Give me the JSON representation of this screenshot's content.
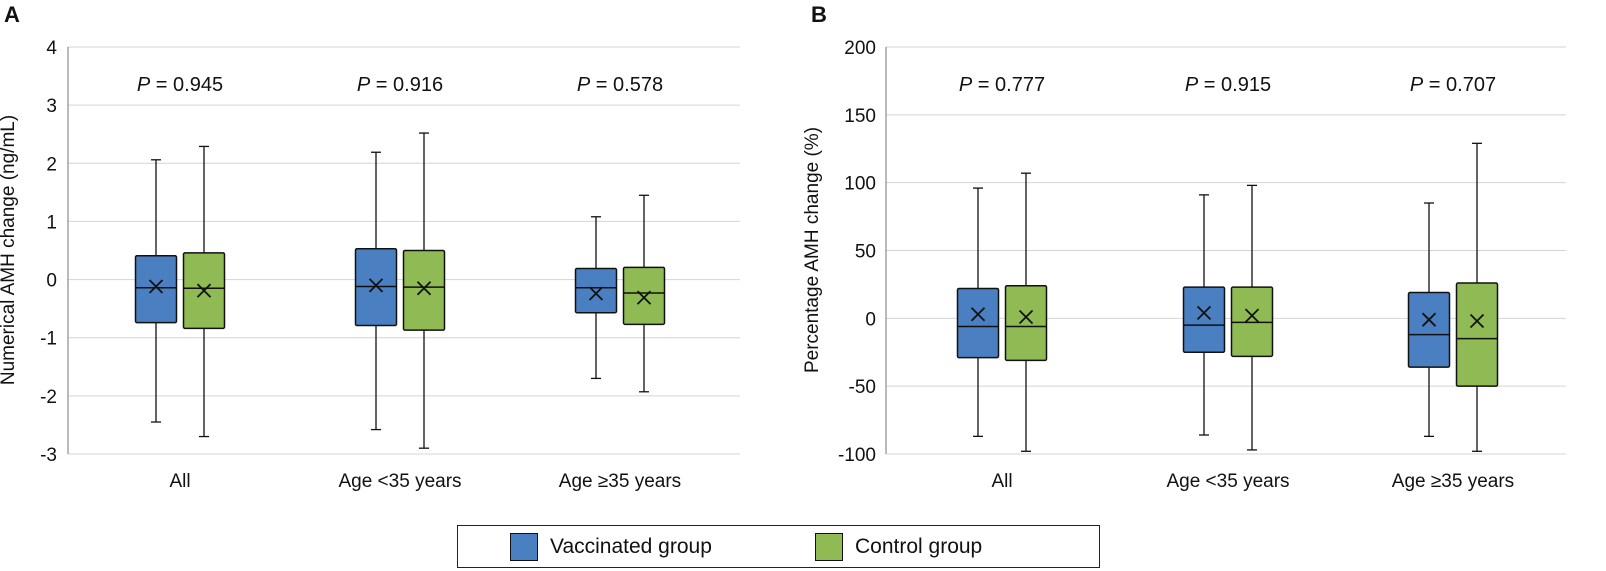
{
  "colors": {
    "vaccinated": "#4a7fc1",
    "control": "#8fba54",
    "grid": "#d4d4d4",
    "axis": "#8c8c8c",
    "ink": "#111111"
  },
  "legend": [
    {
      "label": "Vaccinated group",
      "color": "#4a7fc1"
    },
    {
      "label": "Control group",
      "color": "#8fba54"
    }
  ],
  "chart_data": [
    {
      "panel": "A",
      "type": "boxplot",
      "ylabel": "Numerical AMH change (ng/mL)",
      "ylim": [
        -3,
        4
      ],
      "yticks": [
        -3,
        -2,
        -1,
        0,
        1,
        2,
        3,
        4
      ],
      "grid": true,
      "categories": [
        "All",
        "Age <35 years",
        "Age ≥35 years"
      ],
      "p_values": [
        "0.945",
        "0.916",
        "0.578"
      ],
      "series": [
        {
          "name": "Vaccinated group",
          "boxes": [
            {
              "min": -2.45,
              "q1": -0.74,
              "median": -0.14,
              "mean": -0.12,
              "q3": 0.41,
              "max": 2.06
            },
            {
              "min": -2.58,
              "q1": -0.79,
              "median": -0.12,
              "mean": -0.1,
              "q3": 0.53,
              "max": 2.19
            },
            {
              "min": -1.7,
              "q1": -0.57,
              "median": -0.14,
              "mean": -0.24,
              "q3": 0.19,
              "max": 1.08
            }
          ]
        },
        {
          "name": "Control group",
          "boxes": [
            {
              "min": -2.7,
              "q1": -0.84,
              "median": -0.15,
              "mean": -0.19,
              "q3": 0.46,
              "max": 2.29
            },
            {
              "min": -2.9,
              "q1": -0.87,
              "median": -0.13,
              "mean": -0.15,
              "q3": 0.5,
              "max": 2.52
            },
            {
              "min": -1.93,
              "q1": -0.77,
              "median": -0.23,
              "mean": -0.31,
              "q3": 0.21,
              "max": 1.45
            }
          ]
        }
      ]
    },
    {
      "panel": "B",
      "type": "boxplot",
      "ylabel": "Percentage AMH change (%)",
      "ylim": [
        -100,
        200
      ],
      "yticks": [
        -100,
        -50,
        0,
        50,
        100,
        150,
        200
      ],
      "grid": true,
      "categories": [
        "All",
        "Age <35 years",
        "Age ≥35 years"
      ],
      "p_values": [
        "0.777",
        "0.915",
        "0.707"
      ],
      "series": [
        {
          "name": "Vaccinated group",
          "boxes": [
            {
              "min": -87,
              "q1": -29,
              "median": -6,
              "mean": 3,
              "q3": 22,
              "max": 96
            },
            {
              "min": -86,
              "q1": -25,
              "median": -5,
              "mean": 4,
              "q3": 23,
              "max": 91
            },
            {
              "min": -87,
              "q1": -36,
              "median": -12,
              "mean": -1,
              "q3": 19,
              "max": 85
            }
          ]
        },
        {
          "name": "Control group",
          "boxes": [
            {
              "min": -98,
              "q1": -31,
              "median": -6,
              "mean": 1,
              "q3": 24,
              "max": 107
            },
            {
              "min": -97,
              "q1": -28,
              "median": -3,
              "mean": 2,
              "q3": 23,
              "max": 98
            },
            {
              "min": -98,
              "q1": -50,
              "median": -15,
              "mean": -2,
              "q3": 26,
              "max": 129
            }
          ]
        }
      ]
    }
  ]
}
